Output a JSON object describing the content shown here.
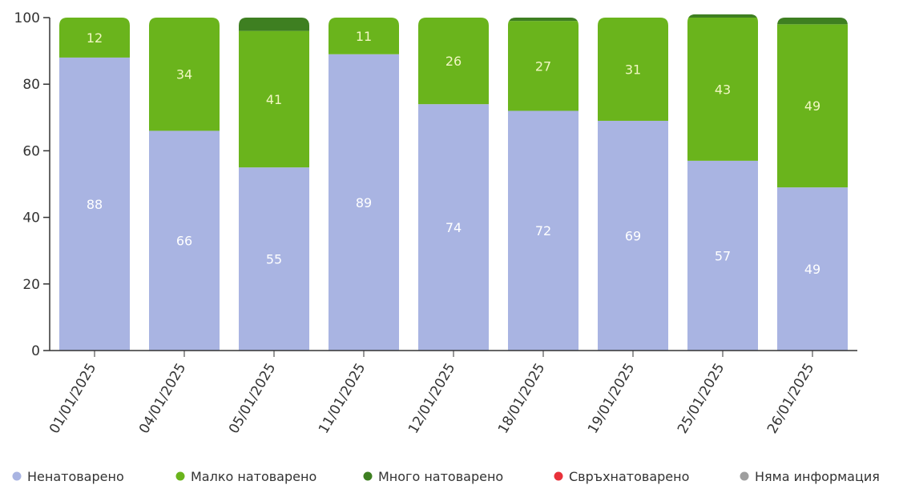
{
  "chart_data": {
    "type": "bar",
    "stacked": true,
    "categories": [
      "01/01/2025",
      "04/01/2025",
      "05/01/2025",
      "11/01/2025",
      "12/01/2025",
      "18/01/2025",
      "19/01/2025",
      "25/01/2025",
      "26/01/2025"
    ],
    "series": [
      {
        "name": "Ненатоварено",
        "color": "#a9b4e2",
        "label_color": "#ffffff",
        "values": [
          88,
          66,
          55,
          89,
          74,
          72,
          69,
          57,
          49
        ],
        "labels": [
          "88",
          "66",
          "55",
          "89",
          "74",
          "72",
          "69",
          "57",
          "49"
        ]
      },
      {
        "name": "Малко натоварено",
        "color": "#6ab41c",
        "label_color": "#f2f7c4",
        "values": [
          12,
          34,
          41,
          11,
          26,
          27,
          31,
          43,
          49
        ],
        "labels": [
          "12",
          "34",
          "41",
          "11",
          "26",
          "27",
          "31",
          "43",
          "49"
        ]
      },
      {
        "name": "Много натоварено",
        "color": "#3e7f21",
        "label_color": "#ffffff",
        "values": [
          0,
          0,
          4,
          0,
          0,
          1,
          0,
          1,
          2
        ],
        "labels": [
          "",
          "",
          "",
          "",
          "",
          "",
          "",
          "",
          ""
        ]
      },
      {
        "name": "Свръхнатоварено",
        "color": "#e8313a",
        "label_color": "#ffffff",
        "values": [
          0,
          0,
          0,
          0,
          0,
          0,
          0,
          0,
          0
        ],
        "labels": [
          "",
          "",
          "",
          "",
          "",
          "",
          "",
          "",
          ""
        ]
      },
      {
        "name": "Няма информация",
        "color": "#9e9e9e",
        "label_color": "#ffffff",
        "values": [
          0,
          0,
          0,
          0,
          0,
          0,
          0,
          0,
          0
        ],
        "labels": [
          "",
          "",
          "",
          "",
          "",
          "",
          "",
          "",
          ""
        ]
      }
    ],
    "yticks": [
      "0",
      "20",
      "40",
      "60",
      "80",
      "100"
    ],
    "ylim": [
      0,
      100
    ],
    "grid": false,
    "legend_position": "bottom",
    "axis_color": "#333333"
  }
}
